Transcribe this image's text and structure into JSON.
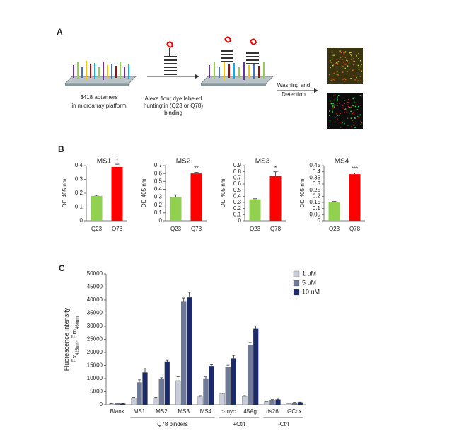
{
  "panel_labels": [
    "A",
    "B",
    "C"
  ],
  "diagram": {
    "platform_label": [
      "3418 aptamers",
      "in microarray platform"
    ],
    "binding_label": [
      "Alexa flour dye labeled",
      "huntingtin  (Q23 or Q78)",
      "binding"
    ],
    "wash_label": [
      "Washing and",
      "Detection"
    ]
  },
  "chart_data": [
    {
      "type": "bar",
      "title": "MS1",
      "y_label": "OD 405 nm",
      "categories": [
        "Q23",
        "Q78"
      ],
      "values": [
        0.18,
        0.39
      ],
      "errors": [
        0.005,
        0.02
      ],
      "colors": [
        "#92d050",
        "#ff0000"
      ],
      "significance": "*",
      "ylim": [
        0,
        0.4
      ],
      "yticks": [
        0,
        0.1,
        0.2,
        0.3,
        0.4
      ]
    },
    {
      "type": "bar",
      "title": "MS2",
      "y_label": "OD 405 nm",
      "categories": [
        "Q23",
        "Q78"
      ],
      "values": [
        0.3,
        0.6
      ],
      "errors": [
        0.03,
        0.015
      ],
      "colors": [
        "#92d050",
        "#ff0000"
      ],
      "significance": "**",
      "ylim": [
        0,
        0.7
      ],
      "yticks": [
        0,
        0.1,
        0.2,
        0.3,
        0.4,
        0.5,
        0.6,
        0.7
      ]
    },
    {
      "type": "bar",
      "title": "MS3",
      "y_label": "OD 405 nm",
      "categories": [
        "Q23",
        "Q78"
      ],
      "values": [
        0.35,
        0.73
      ],
      "errors": [
        0.01,
        0.07
      ],
      "colors": [
        "#92d050",
        "#ff0000"
      ],
      "significance": "*",
      "ylim": [
        0,
        0.9
      ],
      "yticks": [
        0,
        0.1,
        0.2,
        0.3,
        0.4,
        0.5,
        0.6,
        0.7,
        0.8,
        0.9
      ]
    },
    {
      "type": "bar",
      "title": "MS4",
      "y_label": "OD 405 nm",
      "categories": [
        "Q23",
        "Q78"
      ],
      "values": [
        0.15,
        0.38
      ],
      "errors": [
        0.008,
        0.01
      ],
      "colors": [
        "#92d050",
        "#ff0000"
      ],
      "significance": "***",
      "ylim": [
        0,
        0.45
      ],
      "yticks": [
        0,
        0.05,
        0.1,
        0.15,
        0.2,
        0.25,
        0.3,
        0.35,
        0.4,
        0.45
      ]
    },
    {
      "type": "grouped-bar",
      "y_label": "Fluorescence intensity",
      "y_label_parts": [
        "Ex",
        "425nm",
        ", Em",
        "460nm"
      ],
      "categories": [
        "Blank",
        "MS1",
        "MS2",
        "MS3",
        "MS4",
        "c-myc",
        "45Ag",
        "ds26",
        "GCdx"
      ],
      "groups": [
        "Q78 binders",
        "+Ctrl",
        "-Ctrl"
      ],
      "series": [
        {
          "name": "1 uM",
          "color": "#c9cdd9",
          "values": [
            300,
            2500,
            2500,
            9200,
            3100,
            4200,
            3200,
            1200,
            500
          ],
          "errors": [
            100,
            300,
            300,
            1500,
            400,
            300,
            300,
            150,
            100
          ]
        },
        {
          "name": "5 uM",
          "color": "#6e7a96",
          "values": [
            500,
            8500,
            9800,
            39300,
            10000,
            14300,
            22800,
            1800,
            800
          ],
          "errors": [
            100,
            1000,
            500,
            1500,
            600,
            800,
            1000,
            150,
            100
          ]
        },
        {
          "name": "10 uM",
          "color": "#1b2a6b",
          "values": [
            400,
            12300,
            16500,
            41000,
            14800,
            17700,
            29000,
            2000,
            900
          ],
          "errors": [
            100,
            1500,
            500,
            2000,
            500,
            1200,
            1200,
            150,
            100
          ]
        }
      ],
      "ylim": [
        0,
        50000
      ],
      "yticks": [
        0,
        5000,
        10000,
        15000,
        20000,
        25000,
        30000,
        35000,
        40000,
        45000,
        50000
      ],
      "legend": "top-right"
    }
  ]
}
